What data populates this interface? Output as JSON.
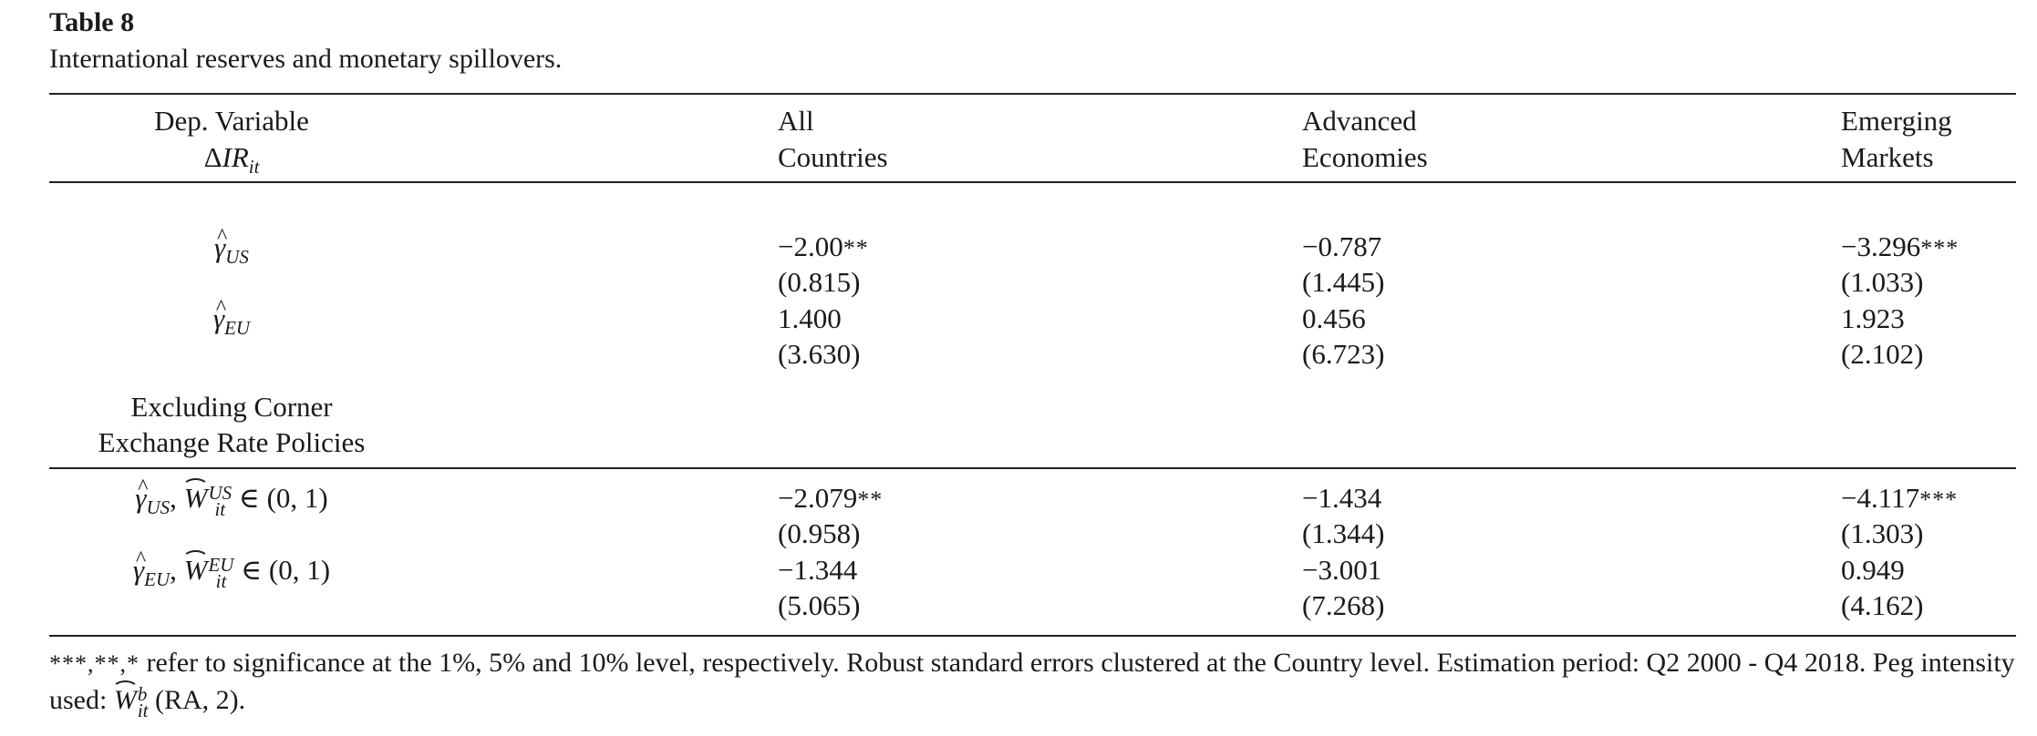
{
  "table": {
    "label": "Table 8",
    "caption": "International reserves and monetary spillovers."
  },
  "header": {
    "dep_line1": "Dep. Variable",
    "dep_delta": "Δ",
    "dep_var": "IR",
    "dep_sub": "it",
    "col1_line1": "All",
    "col1_line2": "Countries",
    "col2_line1": "Advanced",
    "col2_line2": "Economies",
    "col3_line1": "Emerging",
    "col3_line2": "Markets"
  },
  "rows": {
    "us": {
      "sym": "γ",
      "sub": "US",
      "c1": "−2.00",
      "c1_stars": "**",
      "c1_se": "(0.815)",
      "c2": "−0.787",
      "c2_stars": "",
      "c2_se": "(1.445)",
      "c3": "−3.296",
      "c3_stars": "***",
      "c3_se": "(1.033)"
    },
    "eu": {
      "sym": "γ",
      "sub": "EU",
      "c1": "1.400",
      "c1_se": "(3.630)",
      "c2": "0.456",
      "c2_se": "(6.723)",
      "c3": "1.923",
      "c3_se": "(2.102)"
    }
  },
  "section": {
    "line1": "Excluding Corner",
    "line2": "Exchange Rate Policies"
  },
  "rows_excl": {
    "us": {
      "sym": "γ",
      "sub": "US",
      "w": "W",
      "w_sup": "US",
      "w_sub": "it",
      "cond": "∈ (0, 1)",
      "c1": "−2.079",
      "c1_stars": "**",
      "c1_se": "(0.958)",
      "c2": "−1.434",
      "c2_se": "(1.344)",
      "c3": "−4.117",
      "c3_stars": "***",
      "c3_se": "(1.303)"
    },
    "eu": {
      "sym": "γ",
      "sub": "EU",
      "w": "W",
      "w_sup": "EU",
      "w_sub": "it",
      "cond": "∈ (0, 1)",
      "c1": "−1.344",
      "c1_se": "(5.065)",
      "c2": "−3.001",
      "c2_se": "(7.268)",
      "c3": "0.949",
      "c3_se": "(4.162)"
    }
  },
  "note": {
    "stars": "***,**,*",
    "text": " refer to significance at the 1%, 5% and 10% level, respectively. Robust standard errors clustered at the Country level. Estimation period: Q2 2000 - Q4 2018. Peg intensity used: ",
    "w": "W",
    "w_sup": "b",
    "w_sub": "it",
    "tail": " (RA, 2)."
  }
}
